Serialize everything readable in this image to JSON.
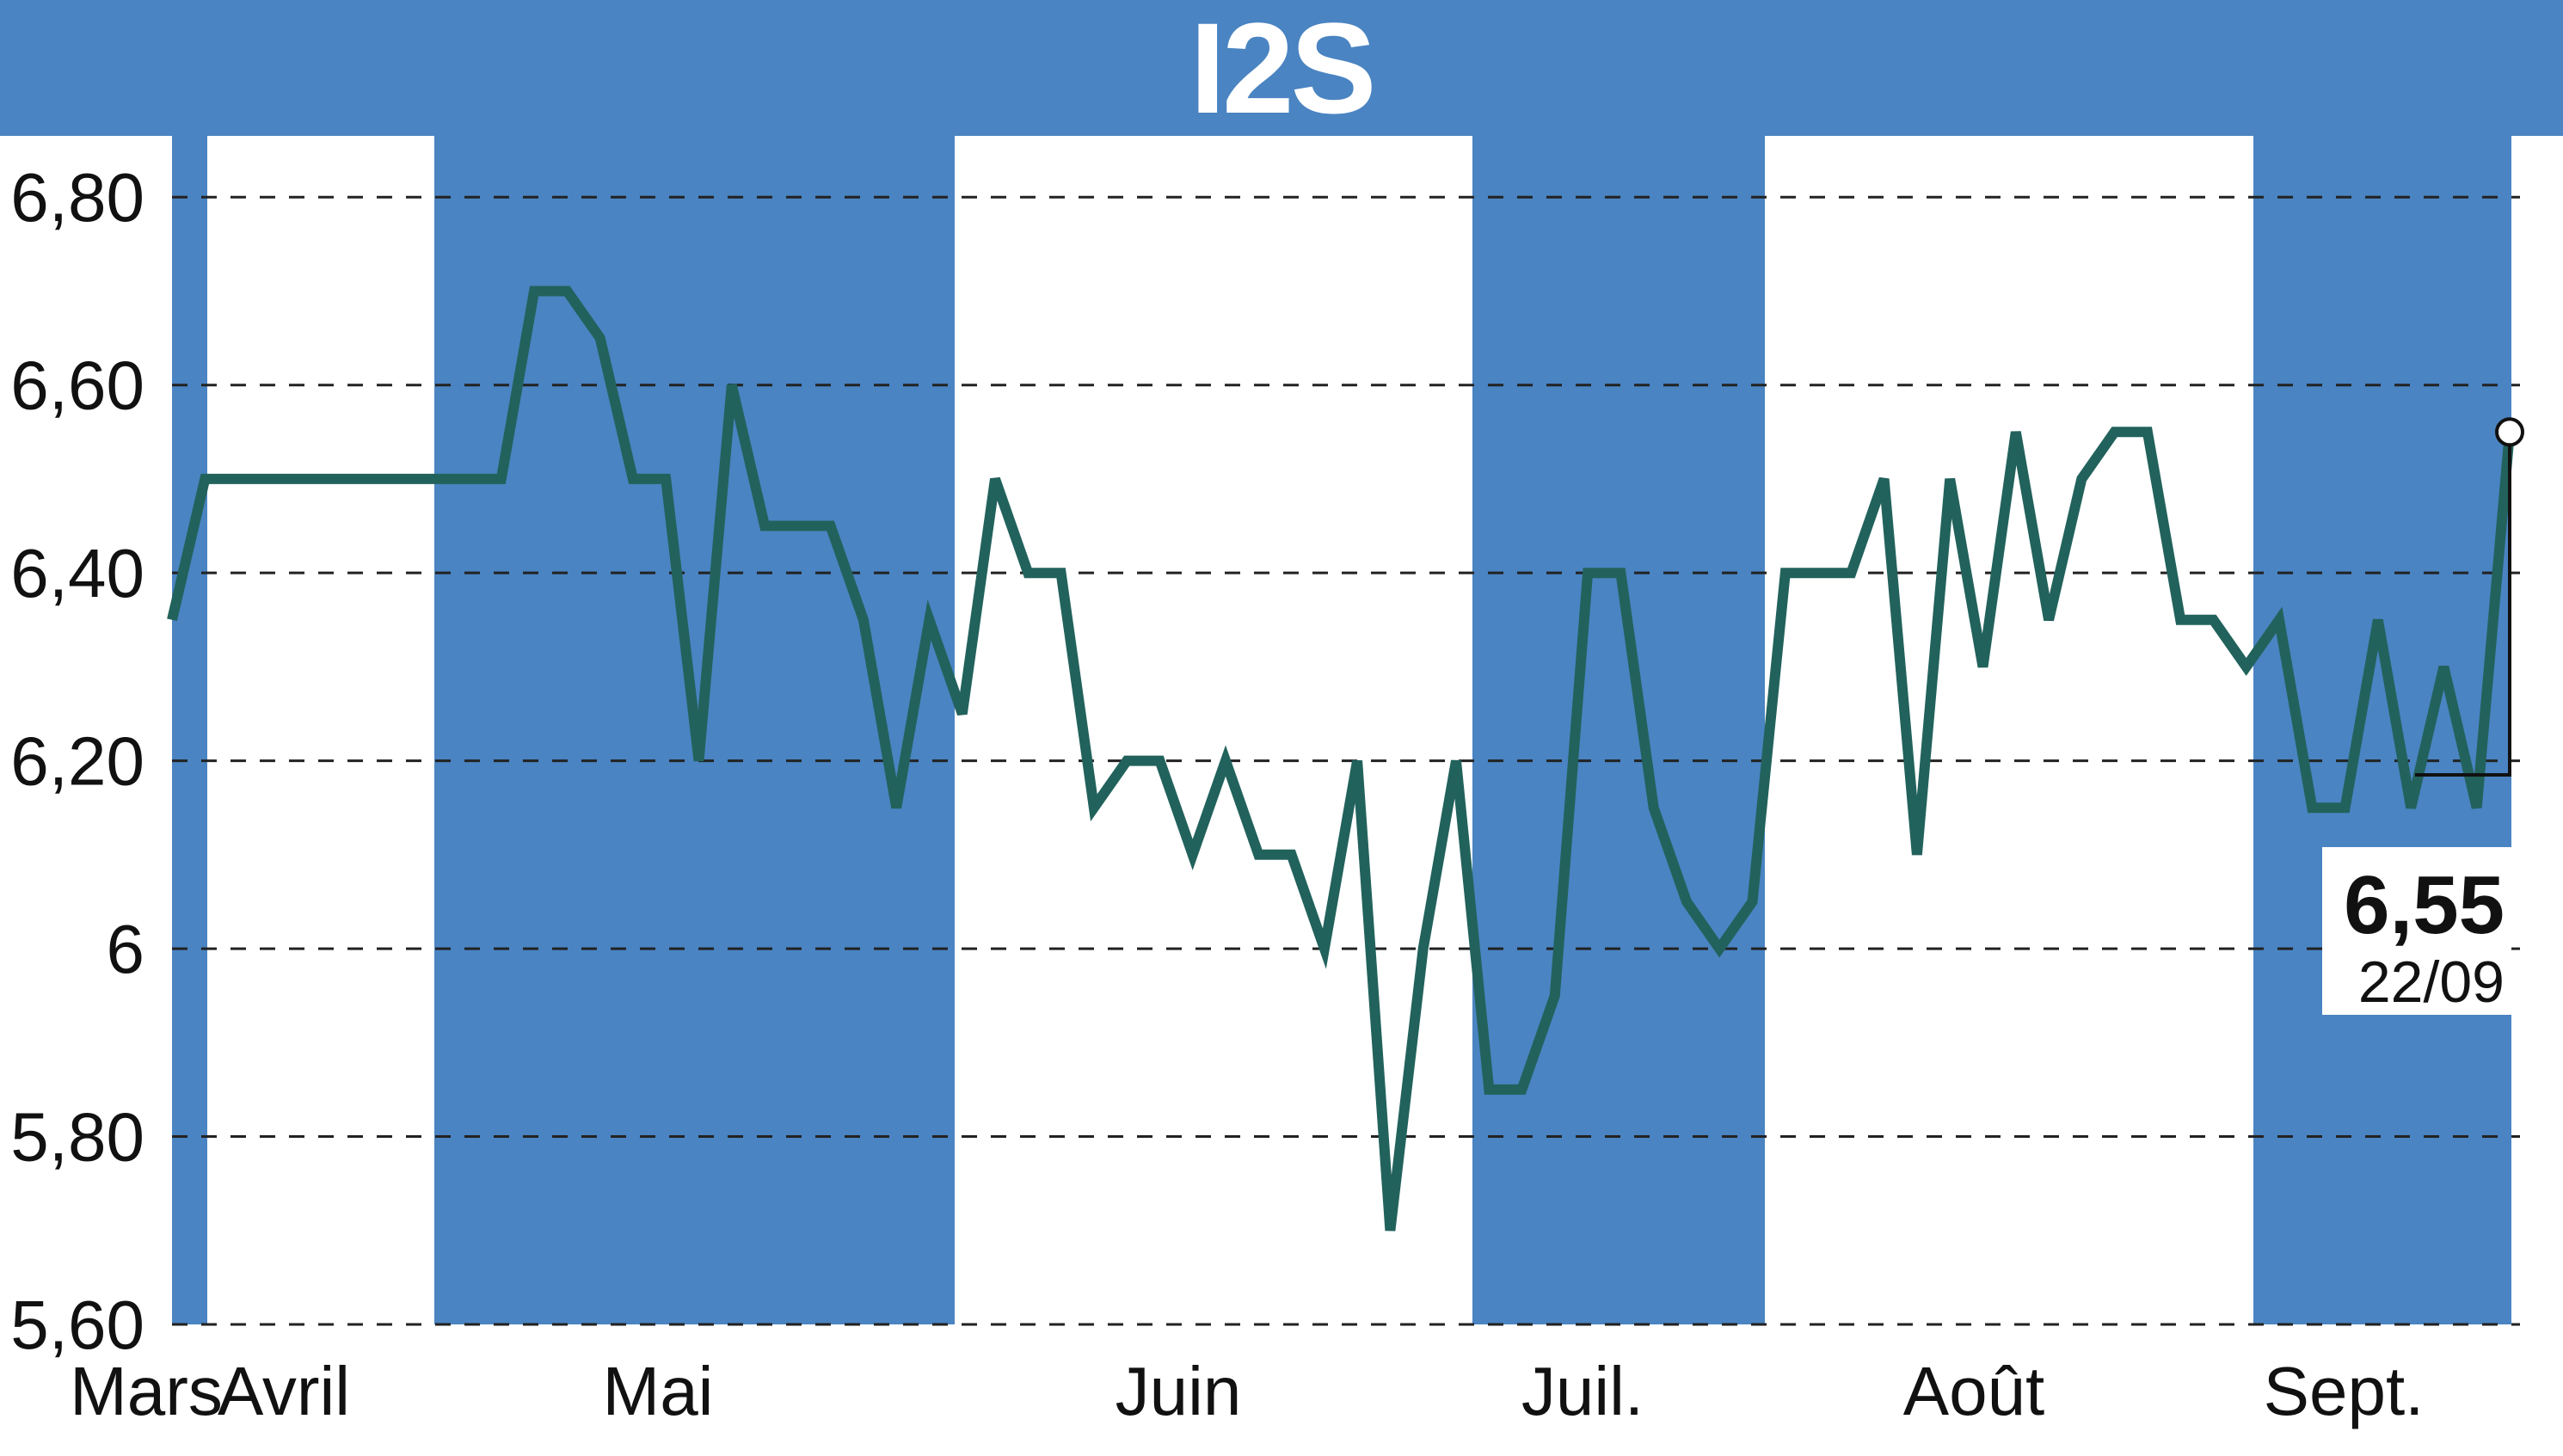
{
  "title": "I2S",
  "colors": {
    "banner": "#4a84c2",
    "fill": "#4a84c2",
    "line": "#22625c",
    "grid": "#222222"
  },
  "chart_data": {
    "type": "line",
    "title": "I2S",
    "xlabel": "",
    "ylabel": "",
    "ylim": [
      5.6,
      6.9
    ],
    "yticks": [
      5.6,
      5.8,
      6.0,
      6.2,
      6.4,
      6.6,
      6.8
    ],
    "ytick_labels": [
      "5,60",
      "5,80",
      "6",
      "6,20",
      "6,40",
      "6,60",
      "6,80"
    ],
    "grid": "horizontal-dashed",
    "month_labels": [
      "Mars",
      "Avril",
      "Mai",
      "Juin",
      "Juil.",
      "Août",
      "Sept."
    ],
    "shaded_months": [
      "Mars",
      "Mai",
      "Juil.",
      "Sept."
    ],
    "series": [
      {
        "values": [
          6.35,
          6.5,
          6.5,
          6.5,
          6.5,
          6.5,
          6.5,
          6.5,
          6.5,
          6.5,
          6.5,
          6.7,
          6.7,
          6.65,
          6.5,
          6.5,
          6.2,
          6.6,
          6.45,
          6.45,
          6.45,
          6.35,
          6.15,
          6.35,
          6.25,
          6.5,
          6.4,
          6.4,
          6.15,
          6.2,
          6.2,
          6.1,
          6.2,
          6.1,
          6.1,
          6.0,
          6.2,
          5.7,
          6.0,
          6.2,
          5.85,
          5.85,
          5.95,
          6.4,
          6.4,
          6.15,
          6.05,
          6.0,
          6.05,
          6.4,
          6.4,
          6.4,
          6.5,
          6.1,
          6.5,
          6.3,
          6.55,
          6.35,
          6.5,
          6.55,
          6.55,
          6.35,
          6.35,
          6.3,
          6.35,
          6.15,
          6.15,
          6.35,
          6.15,
          6.3,
          6.15,
          6.55
        ]
      }
    ],
    "last_value": "6,55",
    "last_date": "22/09"
  }
}
